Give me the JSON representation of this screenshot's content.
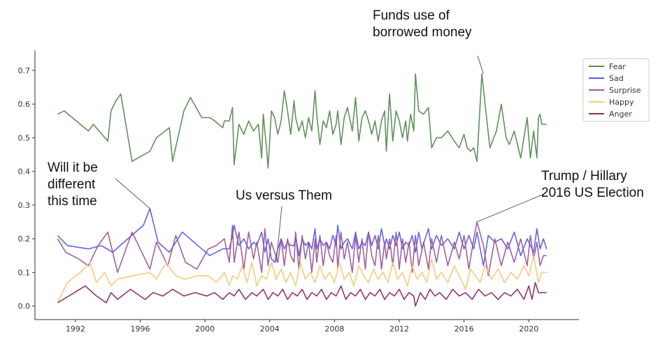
{
  "chart_data": {
    "type": "line",
    "xlim": [
      1989.5,
      2023.1
    ],
    "ylim": [
      -0.04,
      0.76
    ],
    "x_ticks": [
      1992,
      1996,
      2000,
      2004,
      2008,
      2012,
      2016,
      2020
    ],
    "y_ticks": [
      0.0,
      0.1,
      0.2,
      0.3,
      0.4,
      0.5,
      0.6,
      0.7
    ],
    "x_tick_labels": [
      "1992",
      "1996",
      "2000",
      "2004",
      "2008",
      "2012",
      "2016",
      "2020"
    ],
    "y_tick_labels": [
      "0.0",
      "0.1",
      "0.2",
      "0.3",
      "0.4",
      "0.5",
      "0.6",
      "0.7"
    ],
    "grid": false,
    "legend_position": "top-right",
    "series": [
      {
        "name": "Fear",
        "color": "#5a8a55",
        "x": [
          1990.9,
          1991.3,
          1992.8,
          1993.1,
          1994.0,
          1994.2,
          1994.5,
          1994.8,
          1995.5,
          1996.6,
          1997.0,
          1997.8,
          1998.0,
          1998.7,
          1999.1,
          1999.8,
          2000.3,
          2000.6,
          2001.1,
          2001.2,
          2001.5,
          2001.7,
          2001.8,
          2002.1,
          2002.4,
          2002.7,
          2003.0,
          2003.3,
          2003.5,
          2003.6,
          2003.8,
          2003.9,
          2004.1,
          2004.3,
          2004.5,
          2004.7,
          2004.9,
          2005.1,
          2005.3,
          2005.5,
          2005.6,
          2005.8,
          2006.0,
          2006.2,
          2006.4,
          2006.6,
          2006.8,
          2006.9,
          2007.1,
          2007.3,
          2007.5,
          2007.7,
          2007.9,
          2008.1,
          2008.2,
          2008.4,
          2008.6,
          2008.8,
          2009.1,
          2009.3,
          2009.5,
          2009.7,
          2009.9,
          2010.1,
          2010.3,
          2010.5,
          2010.7,
          2010.9,
          2011.1,
          2011.2,
          2011.4,
          2011.6,
          2011.8,
          2012.0,
          2012.2,
          2012.4,
          2012.5,
          2012.7,
          2012.9,
          2013.0,
          2013.2,
          2013.5,
          2013.8,
          2014.0,
          2014.3,
          2014.6,
          2015.0,
          2015.4,
          2015.7,
          2016.0,
          2016.2,
          2016.4,
          2016.6,
          2016.8,
          2017.1,
          2017.3,
          2017.6,
          2018.0,
          2018.3,
          2018.6,
          2018.8,
          2019.1,
          2019.5,
          2019.9,
          2020.1,
          2020.3,
          2020.5,
          2020.6,
          2020.7,
          2020.8,
          2020.9,
          2021.1
        ],
        "values": [
          0.57,
          0.58,
          0.52,
          0.54,
          0.49,
          0.58,
          0.61,
          0.63,
          0.43,
          0.46,
          0.5,
          0.53,
          0.43,
          0.58,
          0.62,
          0.56,
          0.56,
          0.55,
          0.53,
          0.55,
          0.55,
          0.59,
          0.42,
          0.54,
          0.51,
          0.55,
          0.52,
          0.54,
          0.44,
          0.57,
          0.47,
          0.41,
          0.58,
          0.56,
          0.51,
          0.55,
          0.64,
          0.58,
          0.51,
          0.61,
          0.56,
          0.52,
          0.55,
          0.5,
          0.56,
          0.52,
          0.64,
          0.57,
          0.48,
          0.55,
          0.53,
          0.58,
          0.51,
          0.54,
          0.58,
          0.48,
          0.56,
          0.59,
          0.52,
          0.62,
          0.49,
          0.56,
          0.58,
          0.55,
          0.51,
          0.55,
          0.49,
          0.55,
          0.58,
          0.46,
          0.63,
          0.49,
          0.58,
          0.55,
          0.5,
          0.55,
          0.49,
          0.57,
          0.52,
          0.69,
          0.58,
          0.57,
          0.59,
          0.47,
          0.5,
          0.5,
          0.52,
          0.49,
          0.47,
          0.51,
          0.47,
          0.46,
          0.47,
          0.43,
          0.69,
          0.6,
          0.47,
          0.52,
          0.6,
          0.5,
          0.48,
          0.52,
          0.44,
          0.56,
          0.44,
          0.52,
          0.44,
          0.56,
          0.57,
          0.54,
          0.54,
          0.54
        ]
      },
      {
        "name": "Sad",
        "color": "#5b5be8",
        "x": [
          1990.9,
          1991.5,
          1992.8,
          1993.6,
          1994.3,
          1995.0,
          1996.2,
          1996.6,
          1997.1,
          1997.8,
          1998.6,
          1999.8,
          2000.3,
          2001.1,
          2001.5,
          2001.7,
          2001.8,
          2002.1,
          2002.4,
          2002.7,
          2003.0,
          2003.2,
          2003.5,
          2003.7,
          2003.9,
          2004.1,
          2004.3,
          2004.5,
          2004.7,
          2004.9,
          2005.1,
          2005.3,
          2005.5,
          2005.6,
          2005.8,
          2006.0,
          2006.2,
          2006.4,
          2006.6,
          2006.8,
          2006.9,
          2007.1,
          2007.3,
          2007.5,
          2007.7,
          2007.9,
          2008.1,
          2008.2,
          2008.4,
          2008.6,
          2008.8,
          2009.1,
          2009.3,
          2009.5,
          2009.7,
          2009.9,
          2010.1,
          2010.3,
          2010.5,
          2010.7,
          2010.9,
          2011.1,
          2011.2,
          2011.4,
          2011.6,
          2011.8,
          2012.0,
          2012.2,
          2012.4,
          2012.6,
          2012.8,
          2013.0,
          2013.2,
          2013.4,
          2013.6,
          2013.8,
          2014.0,
          2014.3,
          2014.6,
          2015.0,
          2015.4,
          2015.7,
          2016.0,
          2016.3,
          2016.6,
          2016.8,
          2017.2,
          2017.5,
          2017.9,
          2018.3,
          2018.7,
          2019.1,
          2019.5,
          2019.9,
          2020.1,
          2020.3,
          2020.5,
          2020.7,
          2020.9,
          2021.1
        ],
        "values": [
          0.21,
          0.18,
          0.17,
          0.18,
          0.16,
          0.19,
          0.24,
          0.29,
          0.19,
          0.16,
          0.22,
          0.17,
          0.15,
          0.17,
          0.17,
          0.21,
          0.24,
          0.18,
          0.2,
          0.17,
          0.19,
          0.18,
          0.22,
          0.16,
          0.2,
          0.14,
          0.13,
          0.17,
          0.2,
          0.17,
          0.19,
          0.18,
          0.18,
          0.21,
          0.15,
          0.2,
          0.18,
          0.19,
          0.17,
          0.23,
          0.17,
          0.2,
          0.18,
          0.19,
          0.17,
          0.21,
          0.18,
          0.24,
          0.17,
          0.19,
          0.2,
          0.17,
          0.22,
          0.17,
          0.19,
          0.18,
          0.22,
          0.18,
          0.21,
          0.17,
          0.23,
          0.18,
          0.2,
          0.17,
          0.21,
          0.18,
          0.22,
          0.17,
          0.19,
          0.18,
          0.21,
          0.16,
          0.22,
          0.17,
          0.2,
          0.23,
          0.17,
          0.21,
          0.18,
          0.2,
          0.17,
          0.22,
          0.17,
          0.21,
          0.17,
          0.22,
          0.12,
          0.21,
          0.19,
          0.2,
          0.17,
          0.22,
          0.15,
          0.2,
          0.18,
          0.16,
          0.23,
          0.17,
          0.2,
          0.17
        ]
      },
      {
        "name": "Surprise",
        "color": "#9b5a96",
        "x": [
          1990.9,
          1991.4,
          1992.2,
          1992.8,
          1993.4,
          1994.0,
          1994.6,
          1995.5,
          1996.6,
          1997.0,
          1997.7,
          1998.2,
          1998.8,
          1999.5,
          2000.2,
          2000.7,
          2001.2,
          2001.5,
          2001.7,
          2001.8,
          2002.1,
          2002.4,
          2002.7,
          2003.0,
          2003.2,
          2003.5,
          2003.7,
          2003.9,
          2004.1,
          2004.3,
          2004.5,
          2004.7,
          2004.9,
          2005.1,
          2005.3,
          2005.5,
          2005.6,
          2005.8,
          2006.0,
          2006.2,
          2006.4,
          2006.6,
          2006.8,
          2006.9,
          2007.1,
          2007.3,
          2007.5,
          2007.7,
          2007.9,
          2008.1,
          2008.2,
          2008.4,
          2008.6,
          2008.8,
          2009.1,
          2009.3,
          2009.5,
          2009.7,
          2009.9,
          2010.1,
          2010.3,
          2010.5,
          2010.7,
          2010.9,
          2011.1,
          2011.2,
          2011.4,
          2011.6,
          2011.8,
          2012.0,
          2012.2,
          2012.4,
          2012.6,
          2012.8,
          2013.0,
          2013.2,
          2013.5,
          2013.8,
          2014.0,
          2014.3,
          2014.6,
          2015.0,
          2015.4,
          2015.7,
          2016.0,
          2016.3,
          2016.6,
          2016.8,
          2017.2,
          2017.5,
          2017.9,
          2018.3,
          2018.7,
          2019.1,
          2019.5,
          2019.9,
          2020.1,
          2020.3,
          2020.5,
          2020.7,
          2020.9,
          2021.1
        ],
        "values": [
          0.2,
          0.16,
          0.14,
          0.12,
          0.18,
          0.22,
          0.1,
          0.22,
          0.11,
          0.19,
          0.12,
          0.21,
          0.13,
          0.11,
          0.17,
          0.18,
          0.2,
          0.13,
          0.24,
          0.13,
          0.22,
          0.11,
          0.22,
          0.14,
          0.19,
          0.1,
          0.23,
          0.12,
          0.19,
          0.16,
          0.13,
          0.2,
          0.12,
          0.2,
          0.15,
          0.13,
          0.22,
          0.11,
          0.21,
          0.14,
          0.19,
          0.1,
          0.2,
          0.13,
          0.21,
          0.12,
          0.19,
          0.15,
          0.13,
          0.21,
          0.11,
          0.22,
          0.14,
          0.19,
          0.1,
          0.21,
          0.13,
          0.2,
          0.11,
          0.22,
          0.15,
          0.12,
          0.21,
          0.11,
          0.19,
          0.14,
          0.2,
          0.12,
          0.22,
          0.11,
          0.2,
          0.13,
          0.19,
          0.1,
          0.21,
          0.12,
          0.19,
          0.11,
          0.2,
          0.13,
          0.21,
          0.12,
          0.19,
          0.14,
          0.21,
          0.11,
          0.2,
          0.25,
          0.18,
          0.09,
          0.2,
          0.12,
          0.19,
          0.13,
          0.2,
          0.12,
          0.21,
          0.14,
          0.19,
          0.12,
          0.15,
          0.15
        ]
      },
      {
        "name": "Happy",
        "color": "#f5c87a",
        "x": [
          1990.9,
          1991.5,
          1992.3,
          1992.9,
          1993.3,
          1993.8,
          1994.2,
          1994.6,
          1995.5,
          1996.6,
          1997.0,
          1997.6,
          1998.2,
          1998.8,
          1999.5,
          2000.2,
          2000.7,
          2001.2,
          2001.5,
          2001.7,
          2002.0,
          2002.3,
          2002.6,
          2002.9,
          2003.2,
          2003.5,
          2003.8,
          2004.1,
          2004.4,
          2004.7,
          2005.0,
          2005.3,
          2005.6,
          2005.9,
          2006.2,
          2006.5,
          2006.8,
          2007.1,
          2007.4,
          2007.7,
          2008.0,
          2008.3,
          2008.6,
          2008.9,
          2009.2,
          2009.5,
          2009.8,
          2010.1,
          2010.4,
          2010.7,
          2011.0,
          2011.3,
          2011.6,
          2011.9,
          2012.2,
          2012.5,
          2012.8,
          2013.1,
          2013.4,
          2013.7,
          2014.0,
          2014.3,
          2014.6,
          2015.0,
          2015.4,
          2015.8,
          2016.1,
          2016.4,
          2016.7,
          2017.0,
          2017.3,
          2017.7,
          2018.1,
          2018.5,
          2018.9,
          2019.3,
          2019.7,
          2020.0,
          2020.3,
          2020.6,
          2020.8,
          2021.1
        ],
        "values": [
          0.01,
          0.07,
          0.1,
          0.13,
          0.07,
          0.1,
          0.06,
          0.08,
          0.09,
          0.1,
          0.08,
          0.13,
          0.09,
          0.08,
          0.09,
          0.09,
          0.07,
          0.1,
          0.06,
          0.09,
          0.08,
          0.12,
          0.07,
          0.13,
          0.06,
          0.09,
          0.08,
          0.13,
          0.08,
          0.11,
          0.07,
          0.1,
          0.06,
          0.13,
          0.08,
          0.1,
          0.07,
          0.12,
          0.08,
          0.1,
          0.07,
          0.13,
          0.08,
          0.1,
          0.06,
          0.12,
          0.09,
          0.07,
          0.11,
          0.08,
          0.1,
          0.07,
          0.13,
          0.08,
          0.1,
          0.06,
          0.12,
          0.08,
          0.1,
          0.07,
          0.14,
          0.08,
          0.1,
          0.07,
          0.12,
          0.08,
          0.05,
          0.11,
          0.09,
          0.07,
          0.12,
          0.08,
          0.11,
          0.07,
          0.1,
          0.08,
          0.12,
          0.09,
          0.15,
          0.07,
          0.1,
          0.1
        ]
      },
      {
        "name": "Anger",
        "color": "#8c2b63",
        "x": [
          1990.9,
          1991.6,
          1992.6,
          1993.3,
          1993.9,
          1994.2,
          1994.6,
          1995.4,
          1996.3,
          1996.8,
          1997.4,
          1998.0,
          1998.7,
          1999.4,
          2000.1,
          2000.6,
          2001.1,
          2001.5,
          2001.8,
          2002.1,
          2002.5,
          2002.9,
          2003.2,
          2003.6,
          2003.9,
          2004.2,
          2004.5,
          2004.8,
          2005.1,
          2005.4,
          2005.7,
          2006.0,
          2006.3,
          2006.6,
          2006.9,
          2007.2,
          2007.5,
          2007.8,
          2008.1,
          2008.4,
          2008.7,
          2009.0,
          2009.3,
          2009.6,
          2009.9,
          2010.2,
          2010.5,
          2010.8,
          2011.1,
          2011.4,
          2011.7,
          2012.0,
          2012.3,
          2012.6,
          2012.9,
          2013.0,
          2013.3,
          2013.6,
          2013.9,
          2014.2,
          2014.5,
          2014.9,
          2015.3,
          2015.7,
          2016.1,
          2016.5,
          2016.9,
          2017.3,
          2017.7,
          2018.1,
          2018.5,
          2018.9,
          2019.3,
          2019.7,
          2020.0,
          2020.2,
          2020.4,
          2020.6,
          2020.8,
          2021.1
        ],
        "values": [
          0.01,
          0.03,
          0.06,
          0.03,
          0.01,
          0.04,
          0.02,
          0.05,
          0.02,
          0.04,
          0.03,
          0.05,
          0.03,
          0.04,
          0.03,
          0.04,
          0.02,
          0.04,
          0.03,
          0.05,
          0.02,
          0.04,
          0.03,
          0.05,
          0.02,
          0.04,
          0.03,
          0.05,
          0.02,
          0.04,
          0.03,
          0.05,
          0.02,
          0.04,
          0.03,
          0.05,
          0.02,
          0.04,
          0.03,
          0.06,
          0.02,
          0.04,
          0.03,
          0.05,
          0.02,
          0.04,
          0.03,
          0.05,
          0.02,
          0.04,
          0.03,
          0.05,
          0.02,
          0.04,
          0.03,
          0.0,
          0.04,
          0.02,
          0.05,
          0.03,
          0.04,
          0.02,
          0.05,
          0.03,
          0.04,
          0.02,
          0.05,
          0.03,
          0.04,
          0.02,
          0.04,
          0.03,
          0.05,
          0.02,
          0.06,
          0.02,
          0.07,
          0.04,
          0.04,
          0.04
        ]
      }
    ],
    "annotations": [
      {
        "text_lines": [
          "Funds use of",
          "borrowed money"
        ],
        "point": [
          2017.2,
          0.69
        ]
      },
      {
        "text_lines": [
          "Will it be",
          "different",
          "this time"
        ],
        "point": [
          1996.6,
          0.29
        ]
      },
      {
        "text_lines": [
          "Us versus Them"
        ],
        "point": [
          2004.4,
          0.13
        ]
      },
      {
        "text_lines": [
          "Trump / Hillary",
          "2016 US Election"
        ],
        "point": [
          2016.8,
          0.25
        ]
      }
    ]
  }
}
